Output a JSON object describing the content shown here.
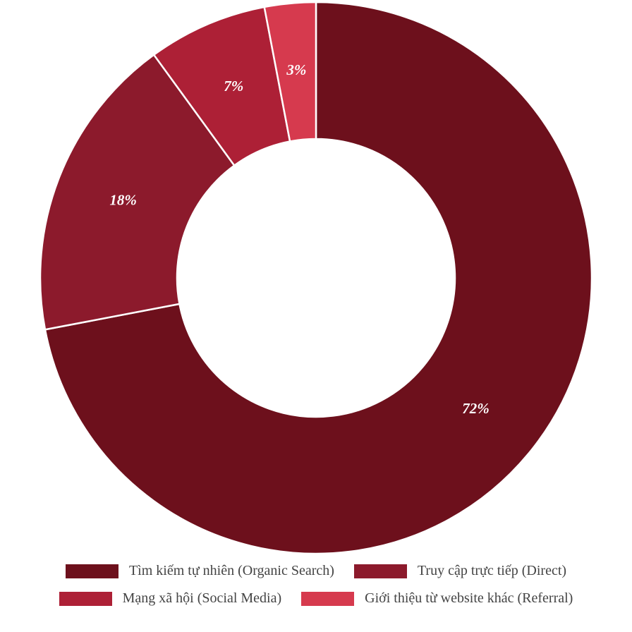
{
  "chart_data": {
    "type": "donut",
    "categories": [
      "Tìm kiếm tự nhiên (Organic Search)",
      "Truy cập trực tiếp (Direct)",
      "Mạng xã hội (Social Media)",
      "Giới thiệu từ website khác (Referral)"
    ],
    "values": [
      72,
      18,
      7,
      3
    ],
    "value_labels": [
      "72%",
      "18%",
      "7%",
      "3%"
    ],
    "colors": [
      "#6d101c",
      "#8c1a2c",
      "#ad2036",
      "#d63a4e"
    ]
  }
}
